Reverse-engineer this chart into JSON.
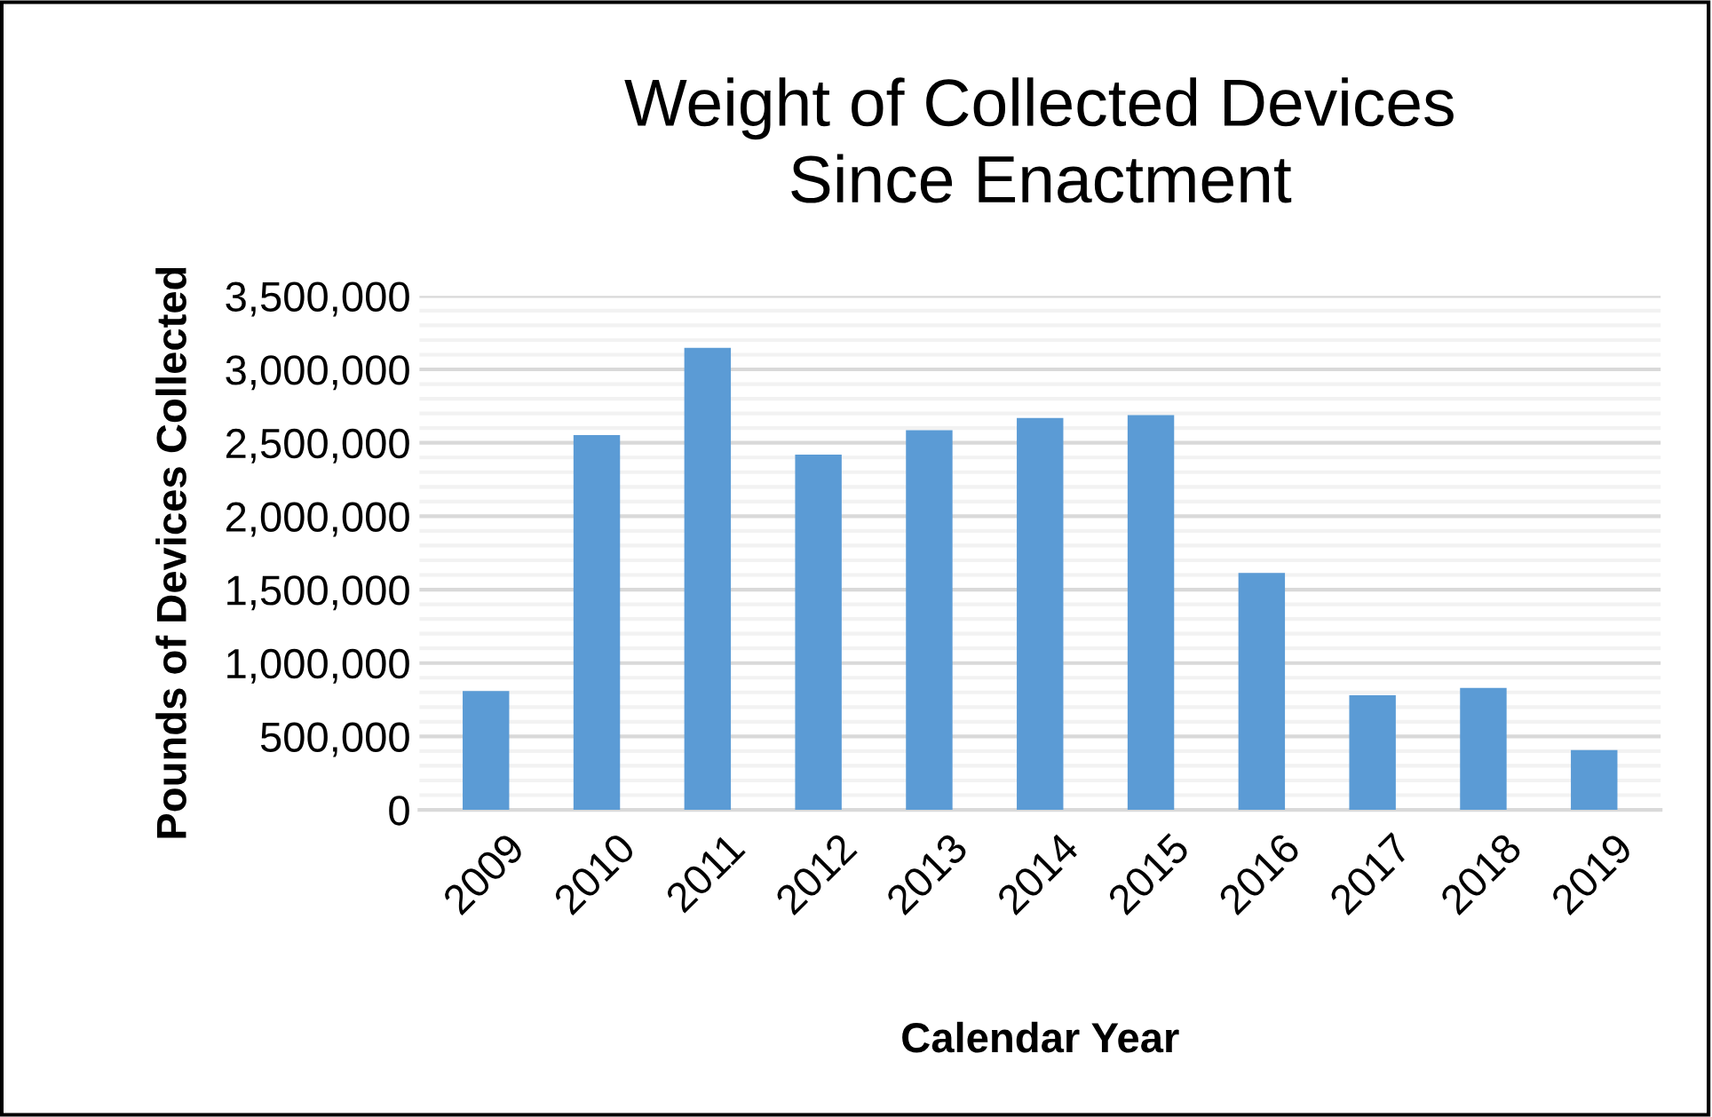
{
  "chart_data": {
    "type": "bar",
    "title": "Weight of Collected Devices\nSince Enactment",
    "xlabel": "Calendar Year",
    "ylabel": "Pounds of Devices Collected",
    "categories": [
      "2009",
      "2010",
      "2011",
      "2012",
      "2013",
      "2014",
      "2015",
      "2016",
      "2017",
      "2018",
      "2019"
    ],
    "values": [
      810000,
      2552000,
      3147000,
      2419000,
      2586000,
      2669000,
      2689000,
      1613000,
      781000,
      831000,
      407000
    ],
    "color": "#5b9bd5",
    "ylim": [
      0,
      3500000
    ],
    "yticks": [
      {
        "value": 0,
        "label": "0"
      },
      {
        "value": 100000,
        "label": null
      },
      {
        "value": 200000,
        "label": null
      },
      {
        "value": 300000,
        "label": null
      },
      {
        "value": 400000,
        "label": null
      },
      {
        "value": 500000,
        "label": "500,000"
      },
      {
        "value": 600000,
        "label": null
      },
      {
        "value": 700000,
        "label": null
      },
      {
        "value": 800000,
        "label": null
      },
      {
        "value": 900000,
        "label": null
      },
      {
        "value": 1000000,
        "label": "1,000,000"
      },
      {
        "value": 1100000,
        "label": null
      },
      {
        "value": 1200000,
        "label": null
      },
      {
        "value": 1300000,
        "label": null
      },
      {
        "value": 1400000,
        "label": null
      },
      {
        "value": 1500000,
        "label": "1,500,000"
      },
      {
        "value": 1600000,
        "label": null
      },
      {
        "value": 1700000,
        "label": null
      },
      {
        "value": 1800000,
        "label": null
      },
      {
        "value": 1900000,
        "label": null
      },
      {
        "value": 2000000,
        "label": "2,000,000"
      },
      {
        "value": 2100000,
        "label": null
      },
      {
        "value": 2200000,
        "label": null
      },
      {
        "value": 2300000,
        "label": null
      },
      {
        "value": 2400000,
        "label": null
      },
      {
        "value": 2500000,
        "label": "2,500,000"
      },
      {
        "value": 2600000,
        "label": null
      },
      {
        "value": 2700000,
        "label": null
      },
      {
        "value": 2800000,
        "label": null
      },
      {
        "value": 2900000,
        "label": null
      },
      {
        "value": 3000000,
        "label": "3,000,000"
      },
      {
        "value": 3100000,
        "label": null
      },
      {
        "value": 3200000,
        "label": null
      },
      {
        "value": 3300000,
        "label": null
      },
      {
        "value": 3400000,
        "label": null
      },
      {
        "value": 3500000,
        "label": "3,500,000"
      }
    ],
    "grid": "y"
  }
}
